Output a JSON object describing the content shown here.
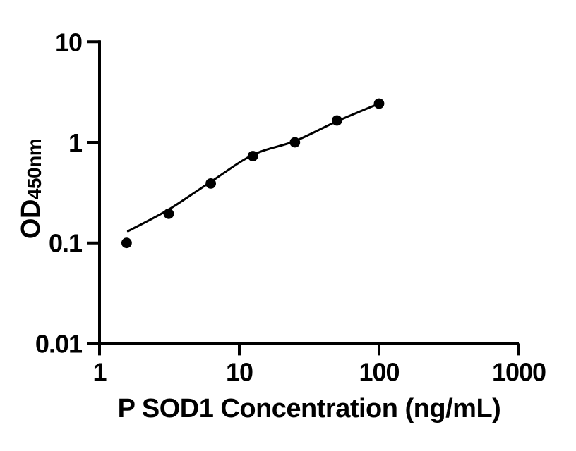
{
  "chart_data": {
    "type": "scatter",
    "title": "",
    "xlabel": "P SOD1 Concentration (ng/mL)",
    "ylabel_main": "OD",
    "ylabel_sub": "450nm",
    "x_scale": "log",
    "y_scale": "log",
    "xlim": [
      1,
      1000
    ],
    "ylim": [
      0.01,
      10
    ],
    "x_ticks": [
      {
        "value": 1,
        "label": "1"
      },
      {
        "value": 10,
        "label": "10"
      },
      {
        "value": 100,
        "label": "100"
      },
      {
        "value": 1000,
        "label": "1000"
      }
    ],
    "y_ticks": [
      {
        "value": 10,
        "label": "10"
      },
      {
        "value": 1,
        "label": "1"
      },
      {
        "value": 0.1,
        "label": "0.1"
      },
      {
        "value": 0.01,
        "label": "0.01"
      }
    ],
    "grid": false,
    "legend": false,
    "points": [
      {
        "x": 1.5625,
        "y": 0.1
      },
      {
        "x": 3.125,
        "y": 0.195
      },
      {
        "x": 6.25,
        "y": 0.39
      },
      {
        "x": 12.5,
        "y": 0.73
      },
      {
        "x": 25,
        "y": 1.0
      },
      {
        "x": 50,
        "y": 1.65
      },
      {
        "x": 100,
        "y": 2.43
      }
    ],
    "fit_curve": [
      {
        "x": 1.6,
        "y": 0.131
      },
      {
        "x": 3.125,
        "y": 0.215
      },
      {
        "x": 6.25,
        "y": 0.405
      },
      {
        "x": 12.5,
        "y": 0.75
      },
      {
        "x": 25,
        "y": 1.03
      },
      {
        "x": 50,
        "y": 1.62
      },
      {
        "x": 100,
        "y": 2.43
      }
    ],
    "marker_color": "#000000",
    "line_color": "#000000",
    "axis_color": "#000000",
    "background_color": "#ffffff"
  }
}
